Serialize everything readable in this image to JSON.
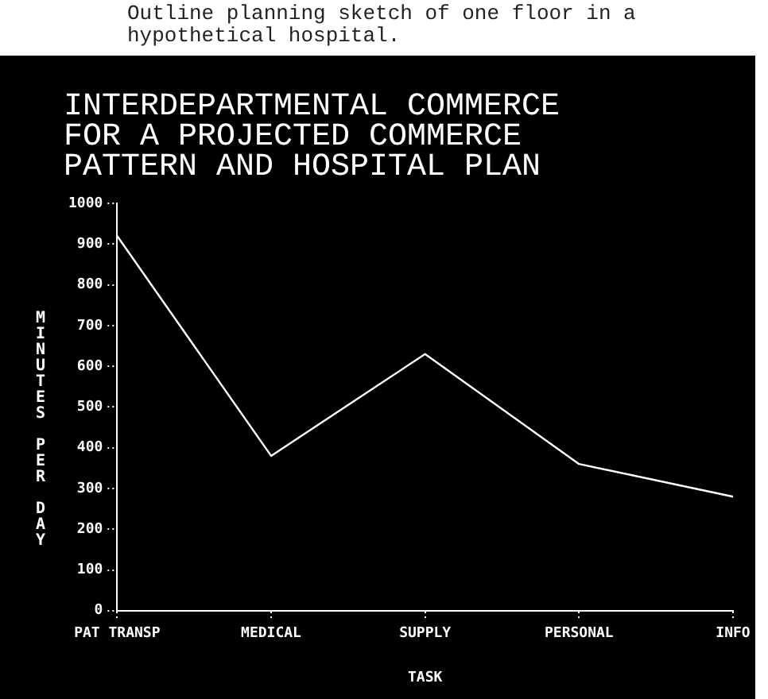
{
  "chart_data": {
    "type": "line",
    "title": "INTERDEPARTMENTAL COMMERCE\nFOR A PROJECTED COMMERCE\nPATTERN AND HOSPITAL PLAN",
    "xlabel": "TASK",
    "ylabel": "MINUTES PER DAY",
    "annotations": [
      "Outline planning sketch of one floor in a hypothetical hospital."
    ],
    "categories": [
      "PAT TRANSP",
      "MEDICAL",
      "SUPPLY",
      "PERSONAL",
      "INFO"
    ],
    "series": [
      {
        "color": "#ffffff",
        "values": [
          920,
          380,
          630,
          360,
          280
        ]
      }
    ],
    "ylim": [
      0,
      1000
    ],
    "yticks": [
      0,
      100,
      200,
      300,
      400,
      500,
      600,
      700,
      800,
      900,
      1000
    ],
    "grid": false,
    "legend": false,
    "marker": "none",
    "line_style": "solid"
  }
}
